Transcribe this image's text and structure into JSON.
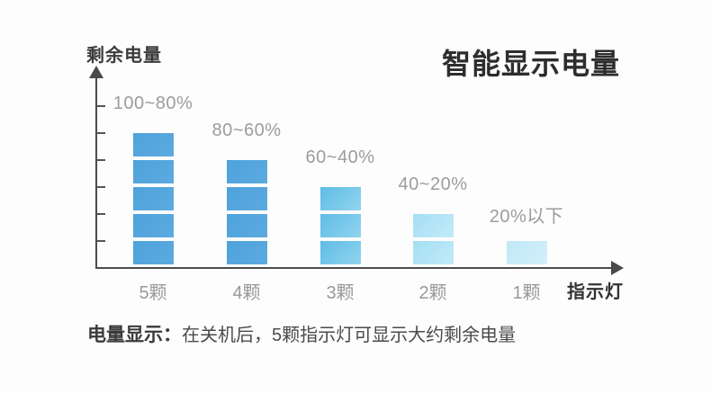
{
  "title": "智能显示电量",
  "axis": {
    "ylabel": "剩余电量",
    "xlabel": "指示灯"
  },
  "caption": {
    "label": "电量显示：",
    "text": "在关机后，5颗指示灯可显示大约剩余电量"
  },
  "chart_data": {
    "type": "bar",
    "title": "智能显示电量",
    "xlabel": "指示灯",
    "ylabel": "剩余电量",
    "categories": [
      "5颗",
      "4颗",
      "3颗",
      "2颗",
      "1颗"
    ],
    "values": [
      5,
      4,
      3,
      2,
      1
    ],
    "value_meaning": "number of lit indicator-light segments",
    "range_labels": [
      "100~80%",
      "80~60%",
      "60~40%",
      "40~20%",
      "20%以下"
    ],
    "ylim": [
      0,
      5
    ],
    "grid": false,
    "legend": false,
    "bar_colors": [
      [
        "#4fa2dc",
        "#5caae0"
      ],
      [
        "#4fa2dc",
        "#5caae0"
      ],
      [
        "#5fbce5",
        "#90d4ee"
      ],
      [
        "#a4dff4",
        "#c3eaf8"
      ],
      [
        "#c0e8f7",
        "#d2f0fa"
      ]
    ]
  },
  "colors": {
    "background": "#fdfdfd",
    "axis": "#4d4d4d",
    "gray_label": "#9c9c9c",
    "dark_text": "#2d2d2d"
  }
}
